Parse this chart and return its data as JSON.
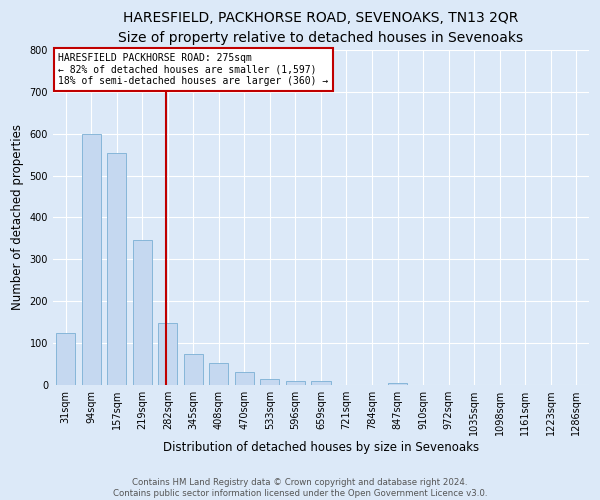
{
  "title": "HARESFIELD, PACKHORSE ROAD, SEVENOAKS, TN13 2QR",
  "subtitle": "Size of property relative to detached houses in Sevenoaks",
  "xlabel": "Distribution of detached houses by size in Sevenoaks",
  "ylabel": "Number of detached properties",
  "categories": [
    "31sqm",
    "94sqm",
    "157sqm",
    "219sqm",
    "282sqm",
    "345sqm",
    "408sqm",
    "470sqm",
    "533sqm",
    "596sqm",
    "659sqm",
    "721sqm",
    "784sqm",
    "847sqm",
    "910sqm",
    "972sqm",
    "1035sqm",
    "1098sqm",
    "1161sqm",
    "1223sqm",
    "1286sqm"
  ],
  "values": [
    125,
    600,
    555,
    347,
    147,
    75,
    53,
    32,
    15,
    10,
    10,
    0,
    0,
    5,
    0,
    0,
    0,
    0,
    0,
    0,
    0
  ],
  "bar_color": "#c5d8f0",
  "bar_edge_color": "#7bafd4",
  "marker_line_color": "#c00000",
  "marker_label": "HARESFIELD PACKHORSE ROAD: 275sqm",
  "annotation_line1": "← 82% of detached houses are smaller (1,597)",
  "annotation_line2": "18% of semi-detached houses are larger (360) →",
  "ylim": [
    0,
    800
  ],
  "yticks": [
    0,
    100,
    200,
    300,
    400,
    500,
    600,
    700,
    800
  ],
  "bg_color": "#dce9f8",
  "footer_line1": "Contains HM Land Registry data © Crown copyright and database right 2024.",
  "footer_line2": "Contains public sector information licensed under the Open Government Licence v3.0.",
  "title_fontsize": 10,
  "subtitle_fontsize": 9,
  "axis_label_fontsize": 8.5,
  "tick_fontsize": 7
}
